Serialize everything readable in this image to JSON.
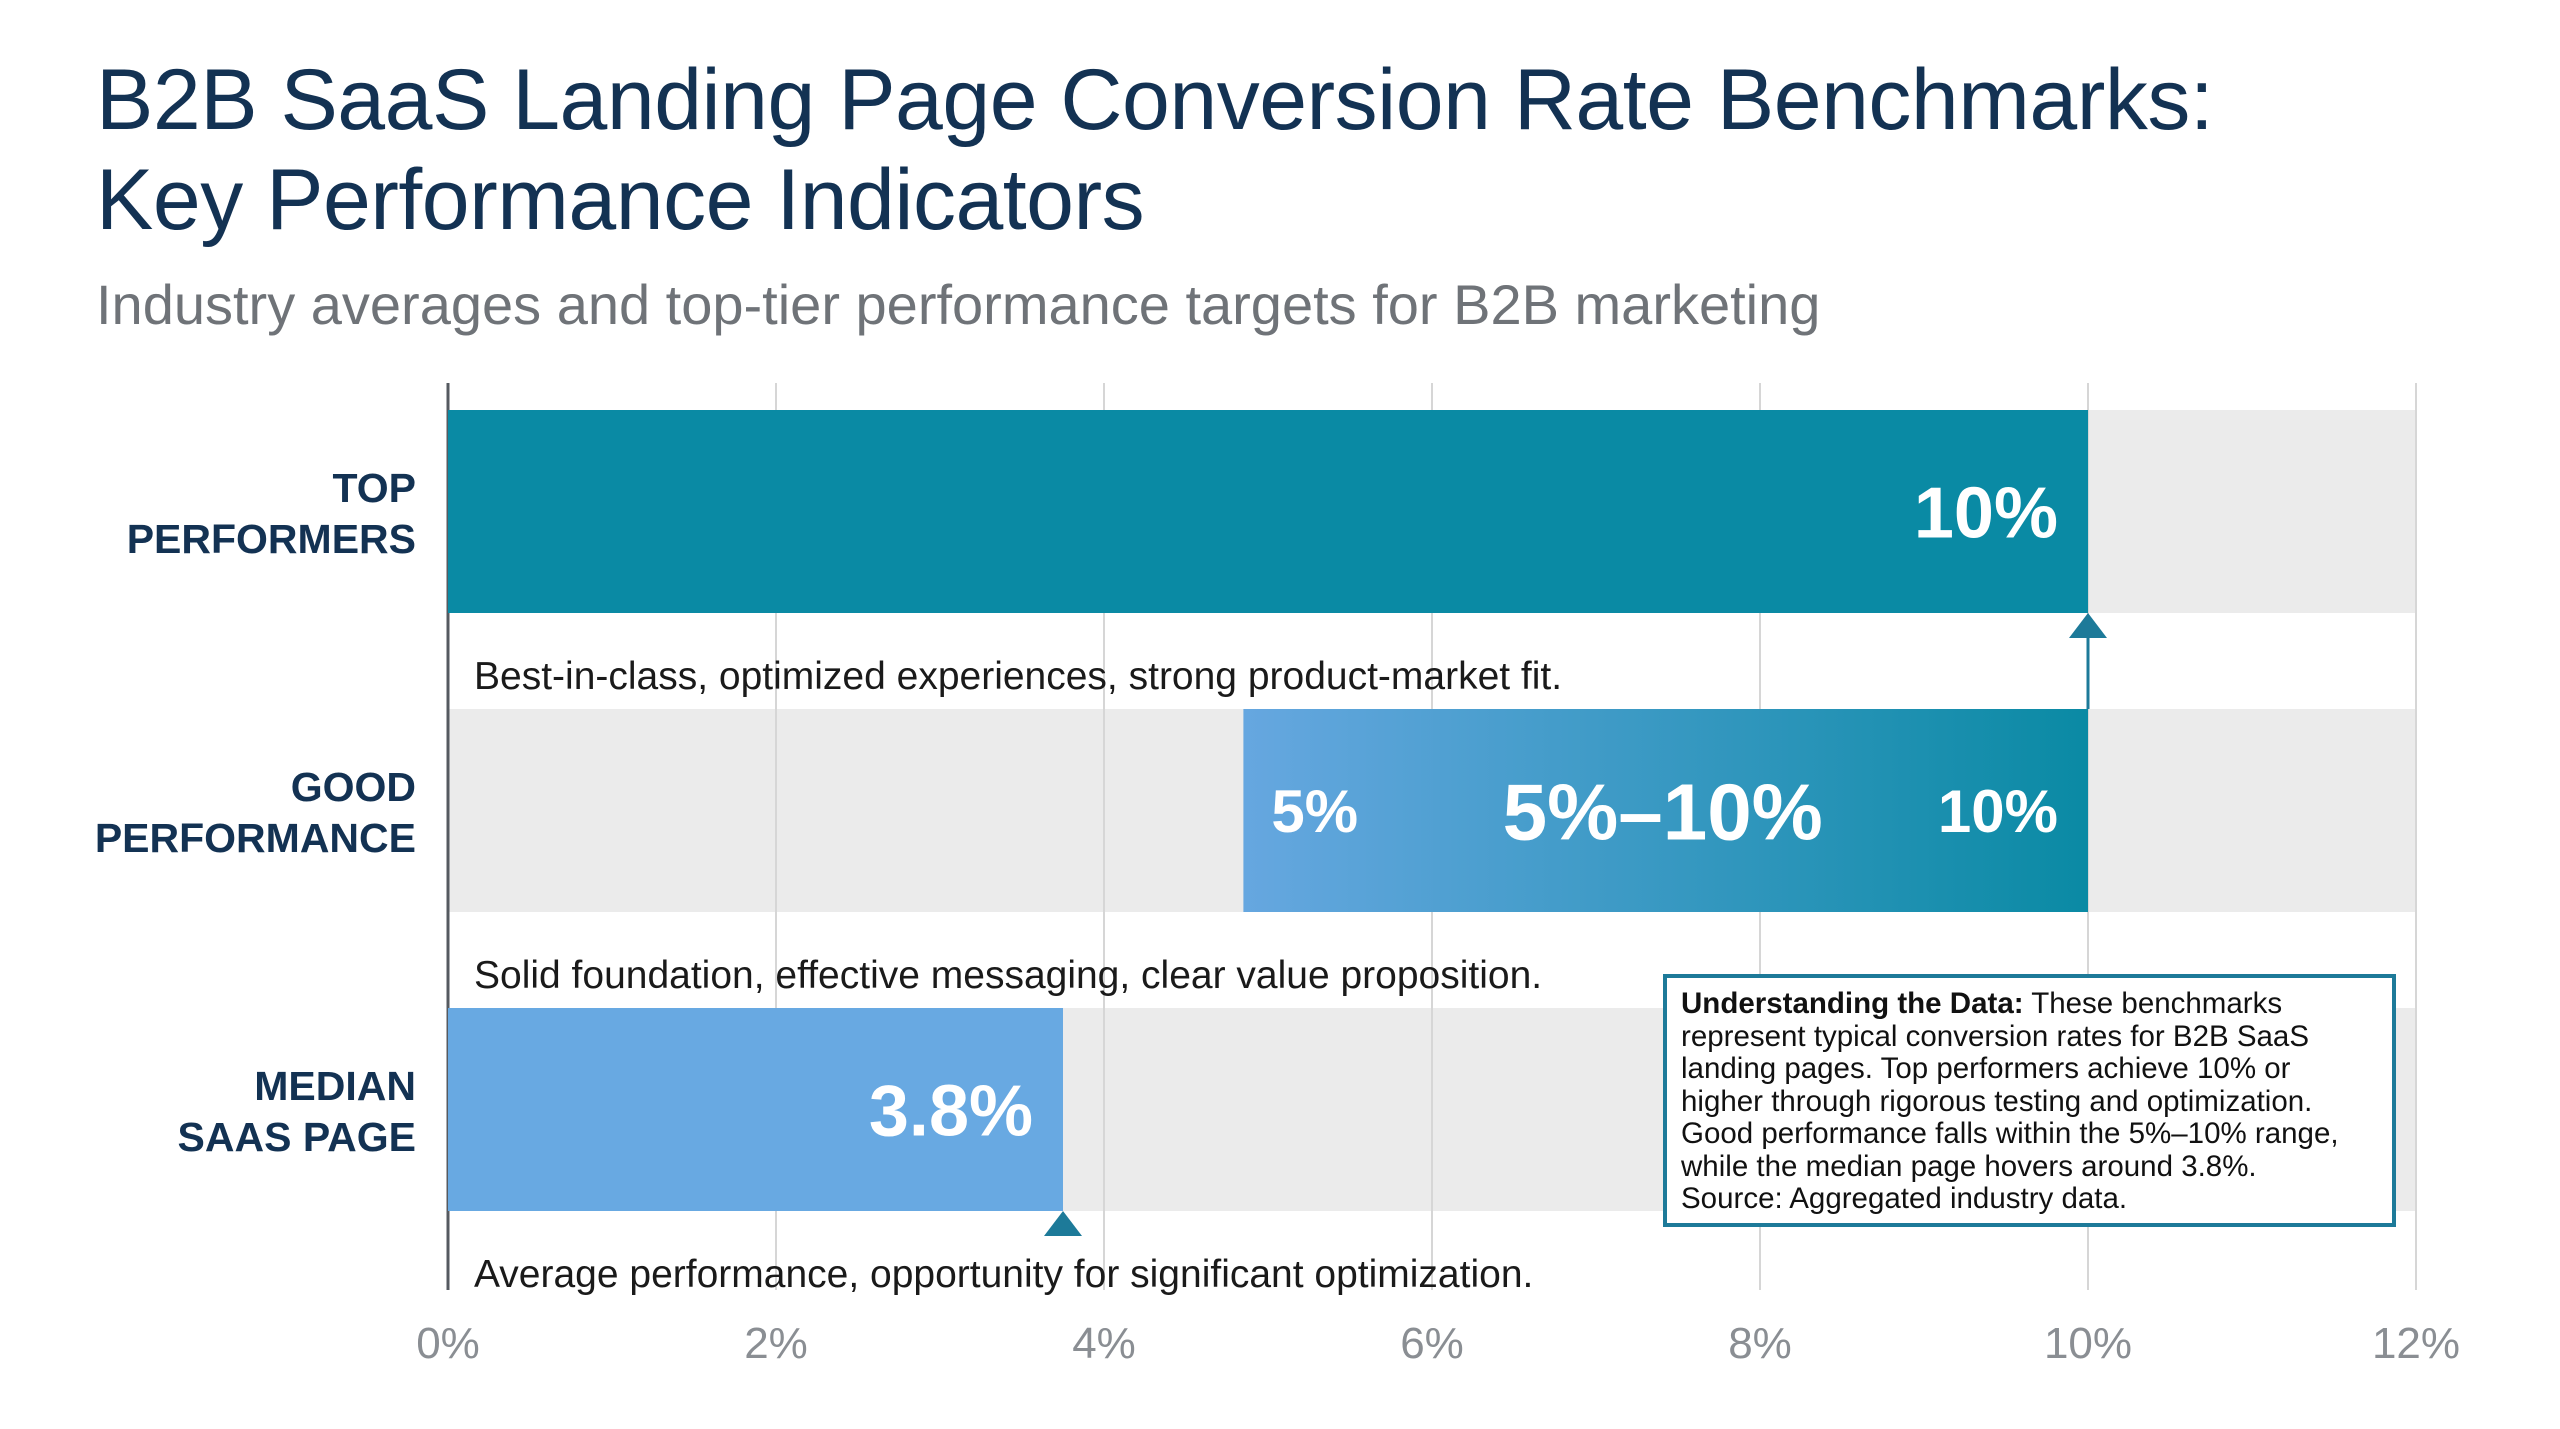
{
  "title_line1": "B2B SaaS Landing Page Conversion Rate Benchmarks:",
  "title_line2": "Key Performance Indicators",
  "subtitle": "Industry averages and top-tier performance targets for B2B marketing",
  "note": {
    "heading": "Understanding the Data:",
    "body": " These benchmarks\nrepresent typical conversion rates for B2B SaaS\nlanding pages. Top performers achieve 10% or\nhigher through rigorous testing and optimization.\nGood performance falls within the 5%–10% range,\nwhile the median page hovers around 3.8%.\nSource: Aggregated industry data."
  },
  "colors": {
    "top": "#0a8aa4",
    "good_start": "#66a7e0",
    "good_end": "#0a8aa4",
    "median": "#68a9e2",
    "row_bg": "#ebebeb",
    "label": "#133253",
    "marker": "#1d7a99"
  },
  "chart_data": {
    "type": "bar",
    "orientation": "horizontal",
    "xlim": [
      0,
      12
    ],
    "xticks": [
      "0%",
      "2%",
      "4%",
      "6%",
      "8%",
      "10%",
      "12%"
    ],
    "grid": true,
    "rows": [
      {
        "label_lines": [
          "TOP",
          "PERFORMERS"
        ],
        "start": 0,
        "end": 10,
        "labels": [
          {
            "text": "10%",
            "at": "end"
          }
        ],
        "description": "Best-in-class, optimized experiences, strong product-market fit.",
        "marker": 10
      },
      {
        "label_lines": [
          "GOOD",
          "PERFORMANCE"
        ],
        "start": 4.85,
        "end": 10,
        "labels": [
          {
            "text": "5%",
            "at": "start"
          },
          {
            "text": "5%–10%",
            "at": "center"
          },
          {
            "text": "10%",
            "at": "end"
          }
        ],
        "description": "Solid foundation, effective messaging, clear value proposition.",
        "marker": null
      },
      {
        "label_lines": [
          "MEDIAN",
          "SAAS PAGE"
        ],
        "start": 0,
        "end": 3.75,
        "labels": [
          {
            "text": "3.8%",
            "at": "end"
          }
        ],
        "description": "Average performance, opportunity for significant optimization.",
        "marker": 3.75
      }
    ]
  }
}
